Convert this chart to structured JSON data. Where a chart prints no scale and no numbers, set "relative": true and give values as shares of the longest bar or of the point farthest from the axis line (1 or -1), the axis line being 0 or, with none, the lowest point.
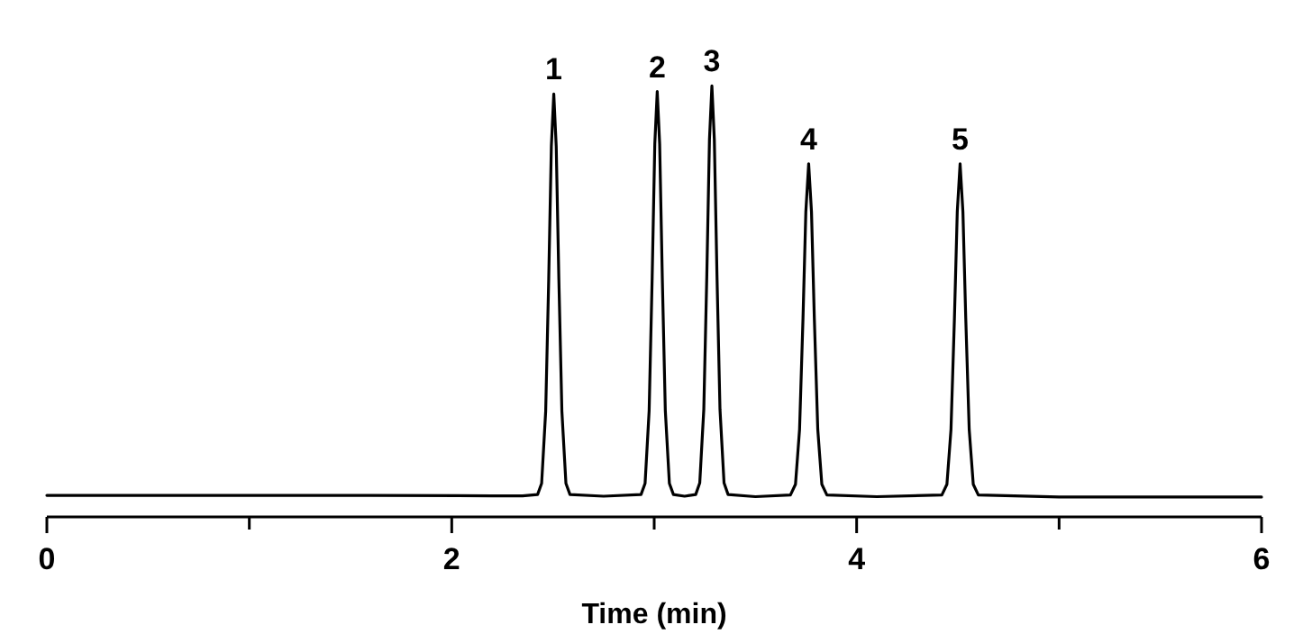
{
  "chart_data": {
    "type": "line",
    "relative": true,
    "xlabel": "Time (min)",
    "xlim": [
      0,
      6
    ],
    "xticks": [
      0,
      {
        "value": 1,
        "label": null
      },
      2,
      {
        "value": 3,
        "label": null
      },
      4,
      {
        "value": 5,
        "label": null
      },
      6
    ],
    "series": [
      {
        "color": "#000000",
        "x": [
          0,
          1.6,
          2.2,
          2.35,
          2.424,
          2.444,
          2.464,
          2.479,
          2.492,
          2.504,
          2.516,
          2.529,
          2.544,
          2.564,
          2.584,
          2.75,
          2.935,
          2.955,
          2.975,
          2.99,
          3.003,
          3.015,
          3.027,
          3.04,
          3.055,
          3.075,
          3.095,
          3.15,
          3.205,
          3.225,
          3.245,
          3.26,
          3.273,
          3.285,
          3.297,
          3.31,
          3.325,
          3.345,
          3.365,
          3.5,
          3.673,
          3.698,
          3.718,
          3.735,
          3.749,
          3.763,
          3.777,
          3.791,
          3.808,
          3.828,
          3.853,
          4.1,
          4.421,
          4.446,
          4.466,
          4.483,
          4.497,
          4.511,
          4.525,
          4.539,
          4.556,
          4.576,
          4.601,
          5,
          6
        ],
        "values": [
          0.042,
          0.042,
          0.041,
          0.041,
          0.044,
          0.07,
          0.239,
          0.549,
          0.859,
          0.981,
          0.859,
          0.549,
          0.239,
          0.07,
          0.044,
          0.04,
          0.044,
          0.07,
          0.24,
          0.552,
          0.864,
          0.987,
          0.864,
          0.552,
          0.24,
          0.07,
          0.044,
          0.04,
          0.044,
          0.071,
          0.243,
          0.559,
          0.875,
          1,
          0.875,
          0.559,
          0.243,
          0.071,
          0.044,
          0.039,
          0.043,
          0.068,
          0.196,
          0.456,
          0.705,
          0.818,
          0.705,
          0.456,
          0.196,
          0.068,
          0.043,
          0.039,
          0.043,
          0.068,
          0.196,
          0.456,
          0.705,
          0.818,
          0.705,
          0.456,
          0.196,
          0.068,
          0.043,
          0.038,
          0.038
        ]
      }
    ],
    "annotations": [
      {
        "text": "1",
        "x": 2.504,
        "y": 0.981
      },
      {
        "text": "2",
        "x": 3.015,
        "y": 0.987
      },
      {
        "text": "3",
        "x": 3.285,
        "y": 1
      },
      {
        "text": "4",
        "x": 3.763,
        "y": 0.818
      },
      {
        "text": "5",
        "x": 4.511,
        "y": 0.818
      }
    ]
  }
}
